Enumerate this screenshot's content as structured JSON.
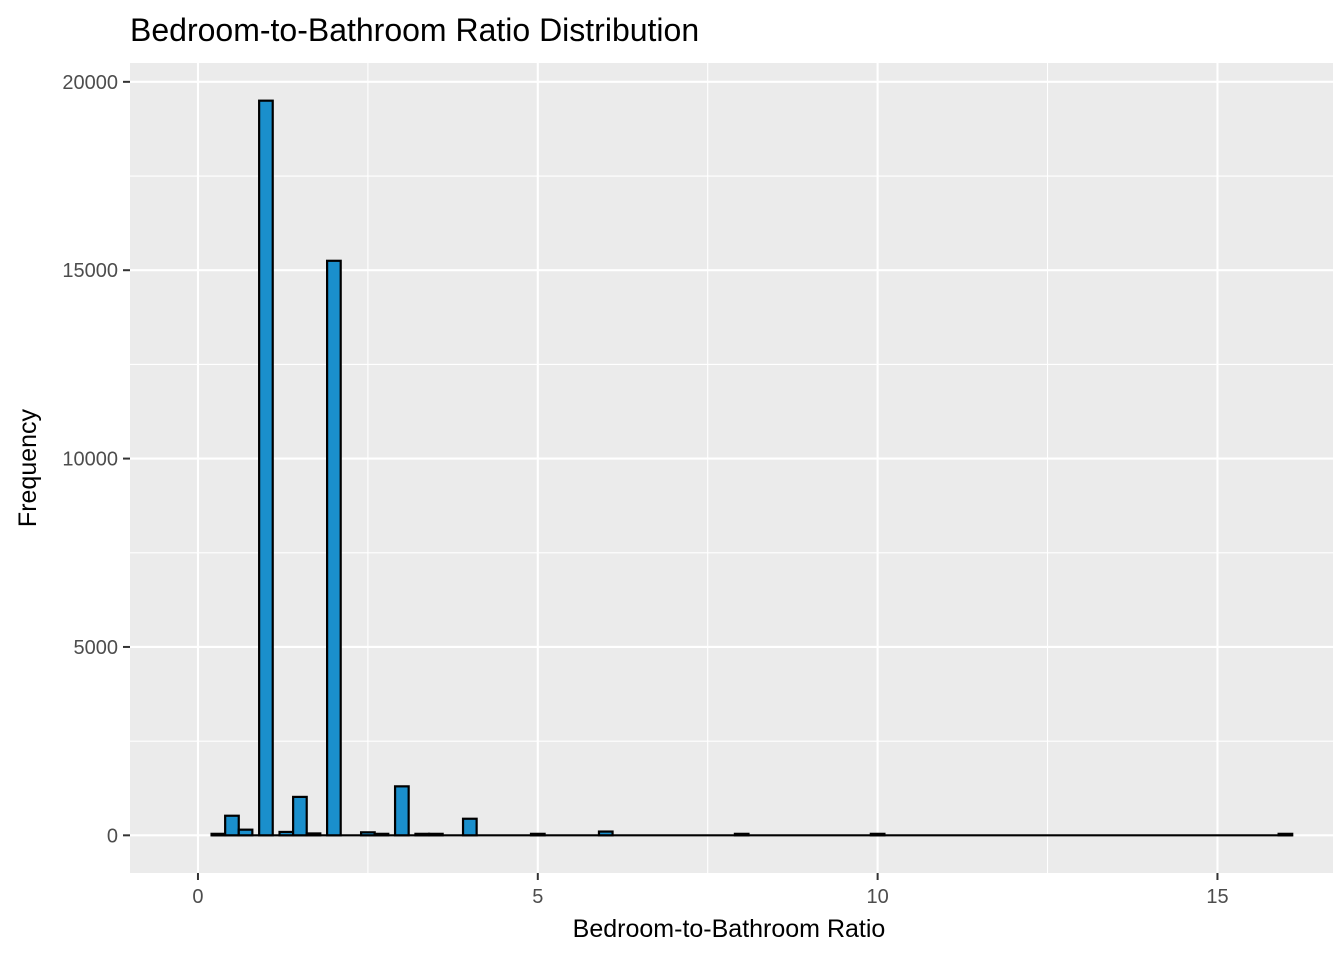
{
  "chart_data": {
    "type": "bar",
    "title": "Bedroom-to-Bathroom Ratio Distribution",
    "xlabel": "Bedroom-to-Bathroom Ratio",
    "ylabel": "Frequency",
    "xlim": [
      -1.0,
      16.7
    ],
    "ylim": [
      -1000,
      20500
    ],
    "x_ticks": [
      0,
      5,
      10,
      15
    ],
    "y_ticks": [
      0,
      5000,
      10000,
      15000,
      20000
    ],
    "x_minor_ticks": [
      2.5,
      7.5,
      12.5
    ],
    "y_minor_ticks": [
      2500,
      7500,
      12500,
      17500
    ],
    "bin_width": 0.2,
    "grid": true,
    "legend": "none",
    "colors": {
      "panel_background": "#ebebeb",
      "bar_fill": "#1a8fcc",
      "bar_outline": "#000000",
      "grid": "#ffffff"
    },
    "bars": [
      {
        "x": 0.3,
        "value": 20
      },
      {
        "x": 0.5,
        "value": 520
      },
      {
        "x": 0.7,
        "value": 150
      },
      {
        "x": 1.0,
        "value": 19500
      },
      {
        "x": 1.3,
        "value": 90
      },
      {
        "x": 1.5,
        "value": 1020
      },
      {
        "x": 1.7,
        "value": 50
      },
      {
        "x": 2.0,
        "value": 15250
      },
      {
        "x": 2.5,
        "value": 80
      },
      {
        "x": 2.7,
        "value": 15
      },
      {
        "x": 3.0,
        "value": 1300
      },
      {
        "x": 3.3,
        "value": 10
      },
      {
        "x": 3.5,
        "value": 8
      },
      {
        "x": 4.0,
        "value": 440
      },
      {
        "x": 5.0,
        "value": 30
      },
      {
        "x": 6.0,
        "value": 100
      },
      {
        "x": 8.0,
        "value": 30
      },
      {
        "x": 10.0,
        "value": 5
      },
      {
        "x": 16.0,
        "value": 2
      }
    ],
    "baseline_range": [
      0.2,
      16.1
    ]
  }
}
